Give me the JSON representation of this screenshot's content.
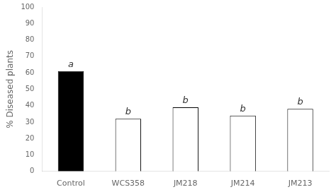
{
  "chart_data": {
    "type": "bar",
    "categories": [
      "Control",
      "WCS358",
      "JM218",
      "JM214",
      "JM213"
    ],
    "values": [
      61,
      32,
      39,
      34,
      38
    ],
    "colors": [
      "#000000",
      "#ffffff",
      "#ffffff",
      "#ffffff",
      "#ffffff"
    ],
    "annotations": [
      {
        "category": "Control",
        "text": "a"
      },
      {
        "category": "WCS358",
        "text": "b"
      },
      {
        "category": "JM218",
        "text": "b"
      },
      {
        "category": "JM214",
        "text": "b"
      },
      {
        "category": "JM213",
        "text": "b"
      }
    ],
    "y_label": "% Diseased plants",
    "ylim": [
      0,
      100
    ],
    "yticks": [
      0,
      10,
      20,
      30,
      40,
      50,
      60,
      70,
      80,
      90,
      100
    ],
    "grid": false
  }
}
